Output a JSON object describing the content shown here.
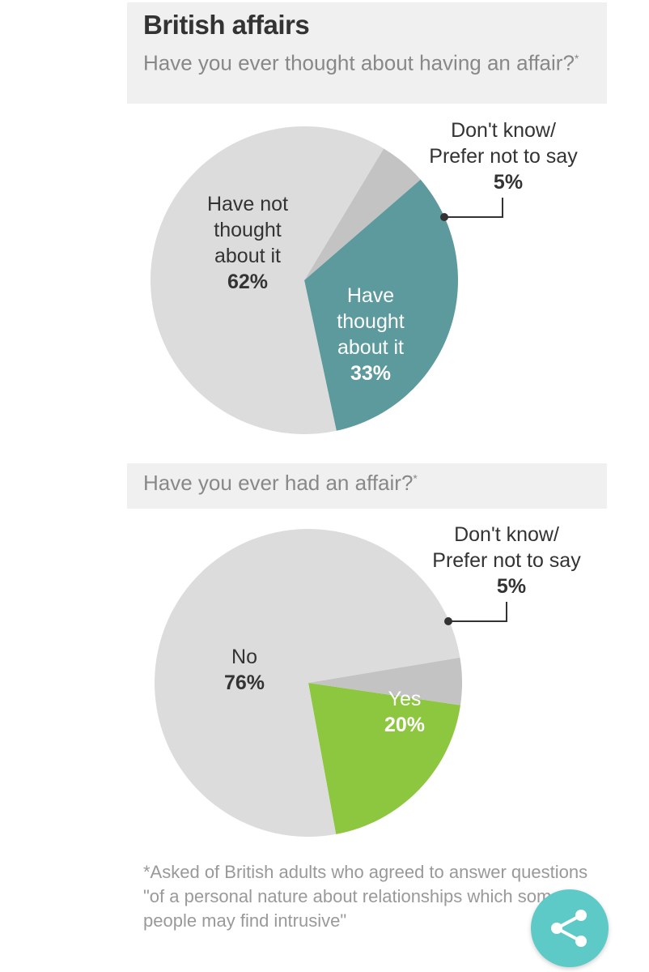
{
  "header": {
    "title": "British affairs",
    "question1": "Have you ever thought about having an affair?",
    "question1_marker": "*"
  },
  "section2": {
    "question2": "Have you ever had an affair?",
    "question2_marker": "*"
  },
  "colors": {
    "gray": "#dcdcdc",
    "dark_gray": "#c3c3c3",
    "teal": "#5c9a9d",
    "green": "#8dc63f",
    "share": "#5ecac7"
  },
  "chart_data": [
    {
      "type": "pie",
      "title": "Have you ever thought about having an affair?",
      "slices": [
        {
          "label_lines": [
            "Have not",
            "thought",
            "about it"
          ],
          "value": 62,
          "pct_label": "62%",
          "color": "#dcdcdc"
        },
        {
          "label_lines": [
            "Have",
            "thought",
            "about it"
          ],
          "value": 33,
          "pct_label": "33%",
          "color": "#5c9a9d"
        },
        {
          "label_lines": [
            "Don't know/",
            "Prefer not to say"
          ],
          "value": 5,
          "pct_label": "5%",
          "color": "#c3c3c3"
        }
      ]
    },
    {
      "type": "pie",
      "title": "Have you ever had an affair?",
      "slices": [
        {
          "label_lines": [
            "No"
          ],
          "value": 76,
          "pct_label": "76%",
          "color": "#dcdcdc"
        },
        {
          "label_lines": [
            "Yes"
          ],
          "value": 20,
          "pct_label": "20%",
          "color": "#8dc63f"
        },
        {
          "label_lines": [
            "Don't know/",
            "Prefer not to say"
          ],
          "value": 5,
          "pct_label": "5%",
          "color": "#c3c3c3"
        }
      ]
    }
  ],
  "footnote": "*Asked of British adults who agreed to answer questions \"of a personal nature about relationships which some people may find intrusive\"",
  "share_button": {
    "icon": "share-icon"
  }
}
